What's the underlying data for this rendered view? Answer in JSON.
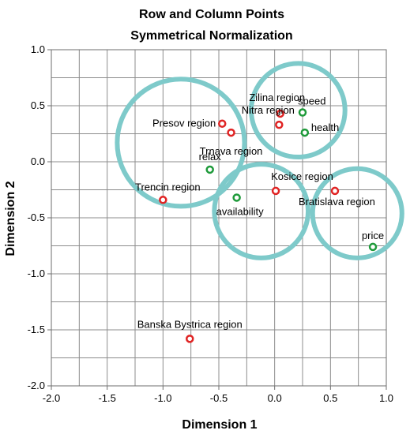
{
  "chart_data": {
    "type": "scatter",
    "title": "Row and Column Points",
    "subtitle": "Symmetrical Normalization",
    "xlabel": "Dimension 1",
    "ylabel": "Dimension 2",
    "xlim": [
      -2.0,
      1.0
    ],
    "ylim": [
      -2.0,
      1.0
    ],
    "x_ticks": [
      "-2.0",
      "-1.5",
      "-1.0",
      "-0.5",
      "0.0",
      "0.5",
      "1.0"
    ],
    "y_ticks": [
      "1.0",
      "0.5",
      "0.0",
      "-0.5",
      "-1.0",
      "-1.5",
      "-2.0"
    ],
    "grid": true,
    "row_color": "#e02424",
    "column_color": "#1e9a3a",
    "circle_color": "#7ecaca",
    "series": [
      {
        "group": "row",
        "points": [
          {
            "label": "Zilina region",
            "x": 0.05,
            "y": 0.43
          },
          {
            "label": "Nitra region",
            "x": 0.04,
            "y": 0.33
          },
          {
            "label": "Presov region",
            "x": -0.47,
            "y": 0.34
          },
          {
            "label": "Trnava region",
            "x": -0.39,
            "y": 0.26
          },
          {
            "label": "Kosice region",
            "x": 0.01,
            "y": -0.26
          },
          {
            "label": "Trencin region",
            "x": -1.0,
            "y": -0.34
          },
          {
            "label": "Bratislava region",
            "x": 0.54,
            "y": -0.26
          },
          {
            "label": "Banska Bystrica region",
            "x": -0.76,
            "y": -1.58
          }
        ]
      },
      {
        "group": "column",
        "points": [
          {
            "label": "speed",
            "x": 0.25,
            "y": 0.44
          },
          {
            "label": "health",
            "x": 0.27,
            "y": 0.26
          },
          {
            "label": "relax",
            "x": -0.58,
            "y": -0.07
          },
          {
            "label": "availability",
            "x": -0.34,
            "y": -0.32
          },
          {
            "label": "price",
            "x": 0.88,
            "y": -0.76
          }
        ]
      }
    ],
    "circles": [
      {
        "cx": -0.84,
        "cy": 0.17,
        "r": 0.57
      },
      {
        "cx": 0.21,
        "cy": 0.46,
        "r": 0.42
      },
      {
        "cx": -0.12,
        "cy": -0.44,
        "r": 0.42
      },
      {
        "cx": 0.74,
        "cy": -0.46,
        "r": 0.4
      }
    ]
  }
}
